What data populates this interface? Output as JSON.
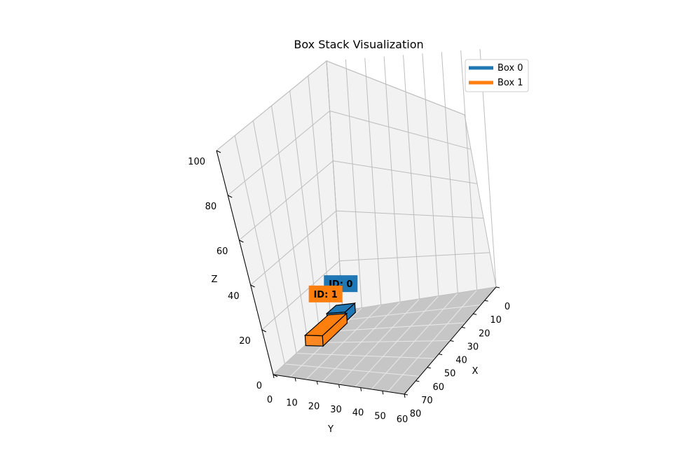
{
  "chart_data": {
    "type": "3d-bar",
    "title": "Box Stack Visualization",
    "xlabel": "X",
    "ylabel": "Y",
    "zlabel": "Z",
    "xlim": [
      0,
      80
    ],
    "ylim": [
      0,
      60
    ],
    "zlim": [
      0,
      100
    ],
    "x_ticks": [
      "0",
      "10",
      "20",
      "30",
      "40",
      "50",
      "60",
      "70",
      "80"
    ],
    "y_ticks": [
      "0",
      "10",
      "20",
      "30",
      "40",
      "50",
      "60"
    ],
    "z_ticks": [
      "0",
      "20",
      "40",
      "60",
      "80",
      "100"
    ],
    "grid": true,
    "legend_position": "top-right",
    "series": [
      {
        "name": "Box 0",
        "label": "ID: 0",
        "color": "#1f77b4",
        "x": [
          0,
          10
        ],
        "y": [
          10,
          18
        ],
        "z": [
          0,
          5
        ]
      },
      {
        "name": "Box 1",
        "label": "ID: 1",
        "color": "#ff7f0e",
        "x": [
          0,
          10
        ],
        "y": [
          18,
          38
        ],
        "z": [
          0,
          5
        ]
      }
    ]
  }
}
